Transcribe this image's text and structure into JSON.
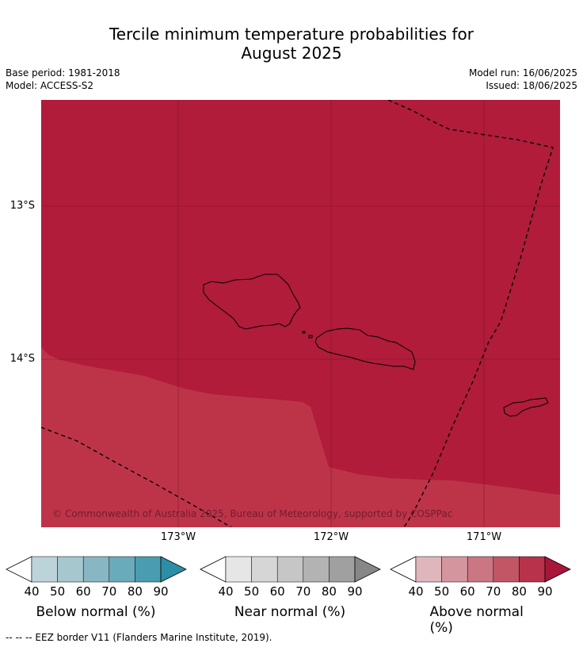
{
  "header": {
    "title_line1": "Tercile minimum temperature probabilities for",
    "title_line2": "August 2025",
    "base_period": "Base period: 1981-2018",
    "model": "Model: ACCESS-S2",
    "model_run": "Model run: 16/06/2025",
    "issued": "Issued: 18/06/2025"
  },
  "map": {
    "lat_labels": [
      "13°S",
      "14°S"
    ],
    "lon_labels": [
      "173°W",
      "172°W",
      "171°W"
    ],
    "copyright": "© Commonwealth of Australia 2025, Bureau of Meteorology, supported by COSPPac",
    "colors": {
      "above_80": "#b01c3a",
      "above_70": "#bd3449",
      "gridline": "#6e1222",
      "coast": "#000000",
      "eez": "#000000"
    }
  },
  "colorbars": [
    {
      "title": "Below normal (%)",
      "ticks": [
        "40",
        "50",
        "60",
        "70",
        "80",
        "90"
      ],
      "colors": [
        "#ffffff",
        "#bdd3da",
        "#a6c7ce",
        "#88b6c3",
        "#6aabbb",
        "#4a9db0",
        "#2c8ea6"
      ]
    },
    {
      "title": "Near normal (%)",
      "ticks": [
        "40",
        "50",
        "60",
        "70",
        "80",
        "90"
      ],
      "colors": [
        "#ffffff",
        "#e6e6e6",
        "#d6d6d6",
        "#c6c6c6",
        "#b3b3b3",
        "#a0a0a0",
        "#878787"
      ]
    },
    {
      "title": "Above normal (%)",
      "ticks": [
        "40",
        "50",
        "60",
        "70",
        "80",
        "90"
      ],
      "colors": [
        "#ffffff",
        "#e0b6bd",
        "#d4959f",
        "#cb7683",
        "#c25664",
        "#b7324a",
        "#a8163a"
      ]
    }
  ],
  "footnote": "--  --  -- EEZ border V11 (Flanders Marine Institute, 2019)."
}
